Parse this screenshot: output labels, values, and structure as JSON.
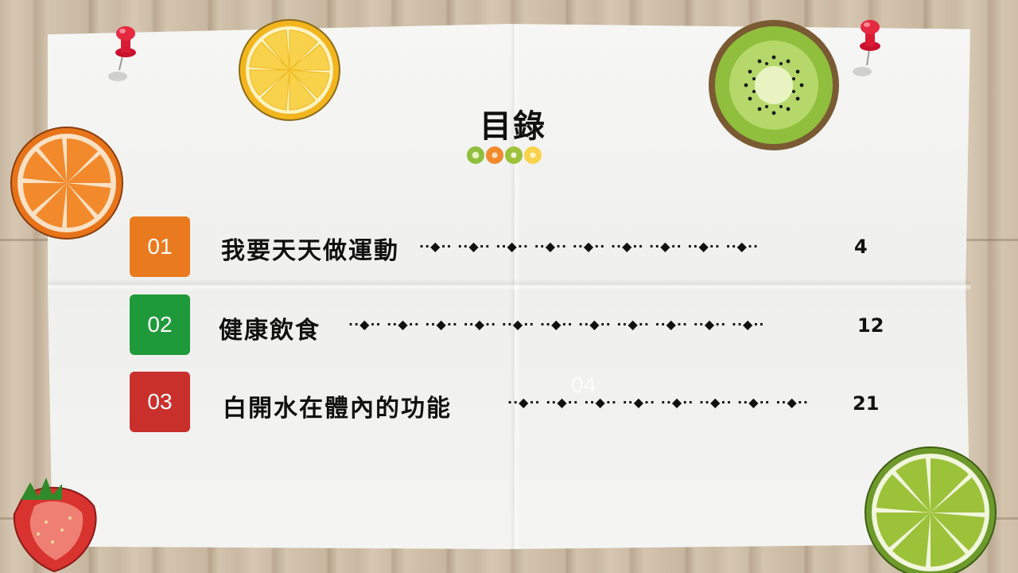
{
  "title": "目錄",
  "toc": [
    {
      "number": "01",
      "label": "我要天天做運動",
      "leader": "··◆·· ··◆·· ··◆·· ··◆·· ··◆·· ··◆·· ··◆·· ··◆·· ··◆··",
      "page": "4",
      "color": "#ea7a1e"
    },
    {
      "number": "02",
      "label": "健康飲食",
      "leader": "··◆·· ··◆·· ··◆·· ··◆·· ··◆·· ··◆·· ··◆·· ··◆·· ··◆·· ··◆·· ··◆··",
      "page": "12",
      "color": "#1f9a3a"
    },
    {
      "number": "03",
      "label": "白開水在體內的功能",
      "leader": "··◆·· ··◆·· ··◆·· ··◆·· ··◆·· ··◆·· ··◆·· ··◆··",
      "page": "21",
      "color": "#c9302c"
    }
  ],
  "ghost_number": "04",
  "colors": {
    "orange": "#ea7a1e",
    "green": "#1f9a3a",
    "red": "#c9302c",
    "lemon": "#f6c324",
    "kiwi": "#8dbb3b",
    "lime": "#9cc23a"
  },
  "icons": [
    "push-pin-icon",
    "lemon-slice-icon",
    "orange-slice-icon",
    "kiwi-slice-icon",
    "strawberry-icon",
    "lime-slice-icon"
  ]
}
